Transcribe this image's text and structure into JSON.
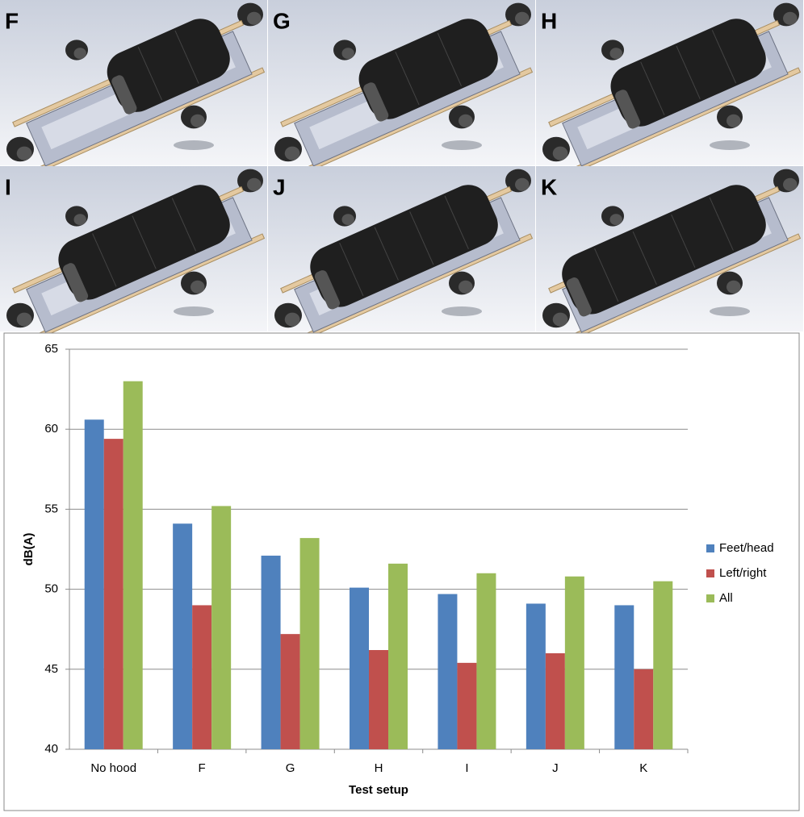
{
  "panels": [
    "F",
    "G",
    "H",
    "I",
    "J",
    "K"
  ],
  "chart_data": {
    "type": "bar",
    "x_label": "Test setup",
    "y_label": "dB(A)",
    "categories": [
      "No hood",
      "F",
      "G",
      "H",
      "I",
      "J",
      "K"
    ],
    "series": [
      {
        "name": "Feet/head",
        "color": "#4f81bd",
        "values": [
          60.6,
          54.1,
          52.1,
          50.1,
          49.7,
          49.1,
          49.0
        ]
      },
      {
        "name": "Left/right",
        "color": "#c0504d",
        "values": [
          59.4,
          49.0,
          47.2,
          46.2,
          45.4,
          46.0,
          45.0
        ]
      },
      {
        "name": "All",
        "color": "#9bbb59",
        "values": [
          63.0,
          55.2,
          53.2,
          51.6,
          51.0,
          50.8,
          50.5
        ]
      }
    ],
    "ylim": [
      40,
      65
    ],
    "yticks": [
      40,
      45,
      50,
      55,
      60,
      65
    ],
    "grid": true,
    "legend": "right"
  }
}
